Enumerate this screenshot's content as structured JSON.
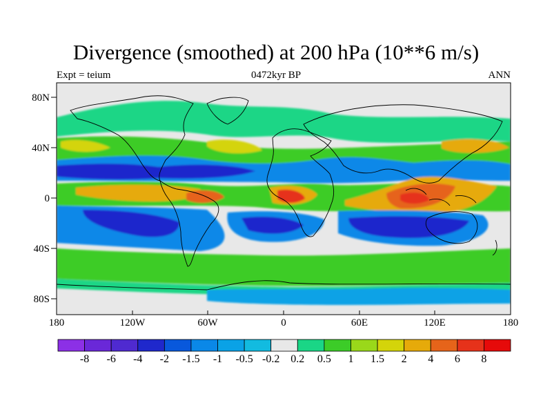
{
  "title": "Divergence (smoothed) at 200 hPa (10**6 m/s)",
  "left_string": "Expt = teium",
  "center_string": "0472kyr BP",
  "right_string": "ANN",
  "axes": {
    "lon_ticks": [
      "180",
      "120W",
      "60W",
      "0",
      "60E",
      "120E",
      "180"
    ],
    "lat_ticks": [
      "80N",
      "40N",
      "0",
      "40S",
      "80S"
    ]
  },
  "colorbar": {
    "labels": [
      "-8",
      "-6",
      "-4",
      "-2",
      "-1.5",
      "-1",
      "-0.5",
      "-0.2",
      "0.2",
      "0.5",
      "1",
      "1.5",
      "2",
      "4",
      "6",
      "8"
    ],
    "colors": [
      "#8c30e6",
      "#6a28d8",
      "#4f2ad0",
      "#1f28cc",
      "#0858dc",
      "#0a88e8",
      "#0aa2e6",
      "#12bbe0",
      "#e8e8e8",
      "#1ad686",
      "#3ccc28",
      "#9ad81a",
      "#d4d40a",
      "#e6aa0a",
      "#e6641a",
      "#e6321a",
      "#e60a0a"
    ]
  },
  "colors": {
    "background": "#e8e8e8",
    "coast": "#000000"
  }
}
